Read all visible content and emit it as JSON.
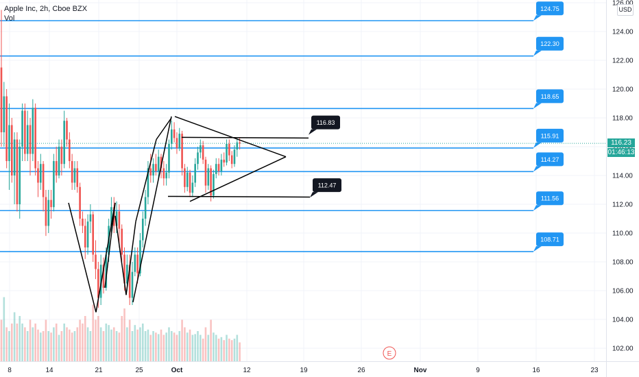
{
  "legend": {
    "symbol": "Apple Inc, 2h, Cboe BZX",
    "volume_label": "Vol"
  },
  "currency_button": "USD",
  "current_price": "116.23",
  "countdown": "01:46:13",
  "earnings_marker": "E",
  "colors": {
    "up": "#26a69a",
    "down": "#ef5350",
    "level_line": "#2196f3",
    "callout_blue": "#2196f3",
    "callout_dark": "#131722",
    "grid": "#f0f3fa",
    "trendline": "#000000"
  },
  "chart_data": {
    "type": "candlestick",
    "title": "Apple Inc, 2h, Cboe BZX",
    "y_axis": {
      "range": [
        101,
        126
      ],
      "ticks": [
        "102.00",
        "104.00",
        "106.00",
        "108.00",
        "110.00",
        "112.00",
        "114.00",
        "116.00",
        "118.00",
        "120.00",
        "122.00",
        "124.00",
        "126.00"
      ]
    },
    "x_axis": {
      "ticks": [
        "8",
        "14",
        "21",
        "25",
        "Oct",
        "12",
        "19",
        "26",
        "Nov",
        "9",
        "16",
        "23"
      ]
    },
    "horizontal_levels": [
      {
        "price": 124.75,
        "label": "124.75"
      },
      {
        "price": 122.3,
        "label": "122.30"
      },
      {
        "price": 118.65,
        "label": "118.65"
      },
      {
        "price": 115.91,
        "label": "115.91"
      },
      {
        "price": 114.27,
        "label": "114.27"
      },
      {
        "price": 111.56,
        "label": "111.56"
      },
      {
        "price": 108.71,
        "label": "108.71"
      }
    ],
    "pattern_callouts": [
      {
        "price": 116.83,
        "label": "116.83"
      },
      {
        "price": 112.47,
        "label": "112.47"
      }
    ],
    "candles": [
      [
        121.5,
        117,
        125.5,
        116
      ],
      [
        117,
        119.5,
        120.5,
        116
      ],
      [
        119.5,
        115,
        120,
        114.5
      ],
      [
        115,
        117.5,
        119,
        113
      ],
      [
        117.5,
        114,
        118,
        113.5
      ],
      [
        114,
        116.5,
        117,
        112
      ],
      [
        116.5,
        112,
        117,
        111.5
      ],
      [
        112,
        116,
        116.5,
        111
      ],
      [
        116,
        118.5,
        119,
        115
      ],
      [
        118.5,
        115.5,
        119,
        115
      ],
      [
        115.5,
        117.5,
        118.5,
        115
      ],
      [
        117.5,
        115.5,
        118,
        114
      ],
      [
        115.5,
        118.7,
        119.3,
        115
      ],
      [
        118.7,
        114.5,
        119,
        114
      ],
      [
        114.5,
        113.5,
        115,
        112.5
      ],
      [
        113.5,
        114.8,
        115.5,
        113
      ],
      [
        114.8,
        112.5,
        115,
        111.5
      ],
      [
        112.5,
        110.5,
        113,
        109.8
      ],
      [
        110.5,
        112.3,
        113,
        110
      ],
      [
        112.3,
        111.8,
        113,
        111
      ],
      [
        111.8,
        115,
        115.5,
        111.5
      ],
      [
        115,
        114,
        116,
        113.5
      ],
      [
        114,
        116,
        116.5,
        113.8
      ],
      [
        116,
        114.8,
        116.5,
        114
      ],
      [
        114.8,
        117.8,
        118.5,
        114.5
      ],
      [
        117.8,
        116.5,
        118,
        116
      ],
      [
        116.5,
        115,
        117,
        114.5
      ],
      [
        115,
        113.5,
        115.5,
        113
      ],
      [
        113.5,
        114.5,
        115,
        113
      ],
      [
        114.5,
        113.2,
        115,
        112.8
      ],
      [
        113.2,
        111,
        113.5,
        110.5
      ],
      [
        111,
        110.5,
        111.5,
        110
      ],
      [
        110.5,
        109,
        111,
        108.2
      ],
      [
        109,
        110.8,
        111.3,
        108.5
      ],
      [
        110.8,
        111.3,
        112,
        110
      ],
      [
        111.3,
        108.5,
        111.5,
        108
      ],
      [
        108.5,
        107.5,
        109.5,
        106.8
      ],
      [
        107.5,
        105.5,
        108,
        104.8
      ],
      [
        105.5,
        107.8,
        108.5,
        105
      ],
      [
        107.8,
        106.2,
        108.3,
        105.8
      ],
      [
        106.2,
        108.5,
        109,
        106
      ],
      [
        108.5,
        110.5,
        111,
        108
      ],
      [
        110.5,
        111.8,
        112.5,
        110
      ],
      [
        111.8,
        110.5,
        112.5,
        110
      ],
      [
        110.5,
        111.5,
        112.2,
        110
      ],
      [
        111.5,
        110.3,
        112,
        109
      ],
      [
        110.3,
        108.5,
        110.6,
        108
      ],
      [
        108.5,
        106.5,
        109,
        106
      ],
      [
        106.5,
        107.8,
        108.5,
        106
      ],
      [
        107.8,
        105.5,
        108.5,
        105
      ],
      [
        105.5,
        107.3,
        108,
        105
      ],
      [
        107.3,
        108.5,
        109,
        107
      ],
      [
        108.5,
        107.2,
        109,
        106.5
      ],
      [
        107.2,
        109.5,
        110,
        107
      ],
      [
        109.5,
        111,
        111.5,
        109
      ],
      [
        111,
        112.5,
        113,
        110.5
      ],
      [
        112.5,
        114.5,
        115,
        112
      ],
      [
        114.5,
        114,
        115.5,
        113.5
      ],
      [
        114,
        114.8,
        115.2,
        113.5
      ],
      [
        114.8,
        114.3,
        115.5,
        114
      ],
      [
        114.3,
        115.3,
        115.8,
        113.8
      ],
      [
        115.3,
        114.5,
        115.5,
        113.8
      ],
      [
        114.5,
        113.8,
        115,
        113.3
      ],
      [
        113.8,
        114.2,
        114.8,
        113.3
      ],
      [
        114.2,
        116.2,
        116.5,
        113.8
      ],
      [
        116.2,
        117.2,
        117.8,
        115.8
      ],
      [
        117.2,
        116.6,
        117.7,
        116.3
      ],
      [
        116.6,
        115.9,
        117,
        115.5
      ],
      [
        115.9,
        116.9,
        117.3,
        115.7
      ],
      [
        116.9,
        114.5,
        117.1,
        114
      ],
      [
        114.5,
        113.2,
        114.8,
        112.8
      ],
      [
        113.2,
        114.2,
        114.6,
        112.9
      ],
      [
        114.2,
        112.8,
        114.4,
        112.5
      ],
      [
        112.8,
        113.5,
        114,
        112.5
      ],
      [
        113.5,
        114.8,
        115.2,
        113.2
      ],
      [
        114.8,
        115.6,
        116,
        114.4
      ],
      [
        115.6,
        116.1,
        116.5,
        115.2
      ],
      [
        116.1,
        115.1,
        116.4,
        114.8
      ],
      [
        115.1,
        113.3,
        115.3,
        112.8
      ],
      [
        113.3,
        114.5,
        114.8,
        113
      ],
      [
        114.5,
        112.6,
        114.7,
        112.2
      ],
      [
        112.6,
        114.1,
        114.4,
        112.4
      ],
      [
        114.1,
        114.8,
        115.2,
        113.8
      ],
      [
        114.8,
        114.3,
        115.2,
        114
      ],
      [
        114.3,
        115.1,
        115.5,
        114
      ],
      [
        115.1,
        114.9,
        115.6,
        114.6
      ],
      [
        114.9,
        116.2,
        116.5,
        114.7
      ],
      [
        116.2,
        115.4,
        116.5,
        115
      ],
      [
        115.4,
        114.8,
        115.7,
        114.5
      ],
      [
        114.8,
        115.8,
        116.1,
        114.6
      ],
      [
        115.8,
        116.3,
        116.5,
        115.3
      ],
      [
        116.3,
        116.23,
        116.6,
        115.8
      ]
    ],
    "volume_profile": [
      0.55,
      0.85,
      0.45,
      0.4,
      0.5,
      0.65,
      0.5,
      0.6,
      0.5,
      0.45,
      0.4,
      0.55,
      0.45,
      0.5,
      0.42,
      0.38,
      0.4,
      0.55,
      0.4,
      0.38,
      0.45,
      0.5,
      0.35,
      0.4,
      0.5,
      0.45,
      0.42,
      0.38,
      0.4,
      0.45,
      0.55,
      0.5,
      0.6,
      0.45,
      0.4,
      0.75,
      0.55,
      0.6,
      0.45,
      0.4,
      0.5,
      0.48,
      0.42,
      0.45,
      0.4,
      0.38,
      0.6,
      0.7,
      0.45,
      0.55,
      0.4,
      0.48,
      0.42,
      0.45,
      0.5,
      0.4,
      0.42,
      0.35,
      0.4,
      0.38,
      0.36,
      0.42,
      0.35,
      0.38,
      0.45,
      0.4,
      0.38,
      0.35,
      0.4,
      0.55,
      0.45,
      0.38,
      0.42,
      0.35,
      0.36,
      0.4,
      0.35,
      0.3,
      0.45,
      0.35,
      0.55,
      0.38,
      0.35,
      0.3,
      0.32,
      0.28,
      0.35,
      0.3,
      0.28,
      0.3,
      0.35,
      0.25
    ]
  }
}
